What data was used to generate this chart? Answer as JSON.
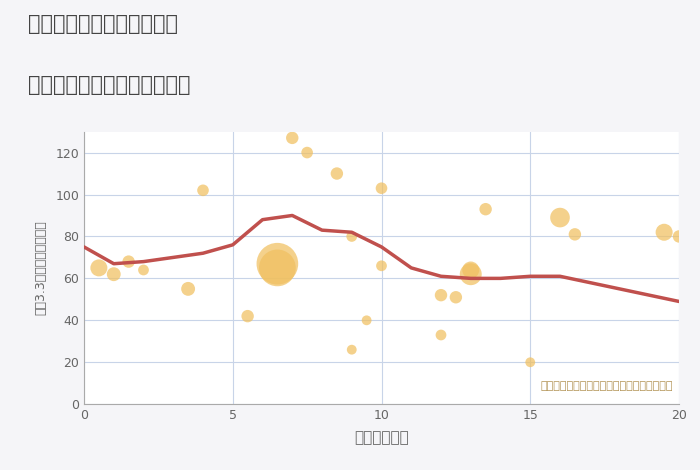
{
  "title_line1": "愛知県稲沢市平和町横池の",
  "title_line2": "駅距離別中古マンション価格",
  "xlabel": "駅距離（分）",
  "ylabel": "坪（3.3㎡）単価（万円）",
  "annotation": "円の大きさは、取引のあった物件面積を示す",
  "xlim": [
    0,
    20
  ],
  "ylim": [
    0,
    130
  ],
  "yticks": [
    0,
    20,
    40,
    60,
    80,
    100,
    120
  ],
  "xticks": [
    0,
    5,
    10,
    15,
    20
  ],
  "background_color": "#f5f5f8",
  "plot_bg_color": "#ffffff",
  "bubble_color": "#f0c060",
  "bubble_alpha": 0.72,
  "line_color": "#c0504d",
  "line_width": 2.5,
  "scatter_x": [
    0.5,
    1.0,
    1.5,
    2.0,
    3.5,
    4.0,
    5.5,
    6.5,
    6.5,
    7.0,
    7.5,
    8.5,
    9.0,
    9.0,
    9.5,
    10.0,
    10.0,
    12.0,
    12.0,
    12.5,
    13.0,
    13.0,
    13.5,
    15.0,
    16.0,
    16.5,
    19.5,
    20.0
  ],
  "scatter_y": [
    65,
    62,
    68,
    64,
    55,
    102,
    42,
    67,
    65,
    127,
    120,
    110,
    26,
    80,
    40,
    66,
    103,
    52,
    33,
    51,
    62,
    64,
    93,
    20,
    89,
    81,
    82,
    80
  ],
  "scatter_size": [
    150,
    100,
    80,
    60,
    100,
    70,
    80,
    900,
    700,
    80,
    70,
    80,
    50,
    60,
    50,
    60,
    70,
    80,
    60,
    80,
    250,
    150,
    80,
    50,
    200,
    80,
    150,
    80
  ],
  "line_x": [
    0,
    1,
    2,
    3,
    4,
    5,
    6,
    7,
    8,
    9,
    10,
    11,
    12,
    13,
    14,
    15,
    16,
    17,
    18,
    19,
    20
  ],
  "line_y": [
    75,
    67,
    68,
    70,
    72,
    76,
    88,
    90,
    83,
    82,
    75,
    65,
    61,
    60,
    60,
    61,
    61,
    58,
    55,
    52,
    49
  ],
  "title_color": "#444444",
  "tick_color": "#666666",
  "grid_color": "#c8d4e8",
  "annotation_color": "#b09050",
  "spine_color": "#aaaaaa"
}
